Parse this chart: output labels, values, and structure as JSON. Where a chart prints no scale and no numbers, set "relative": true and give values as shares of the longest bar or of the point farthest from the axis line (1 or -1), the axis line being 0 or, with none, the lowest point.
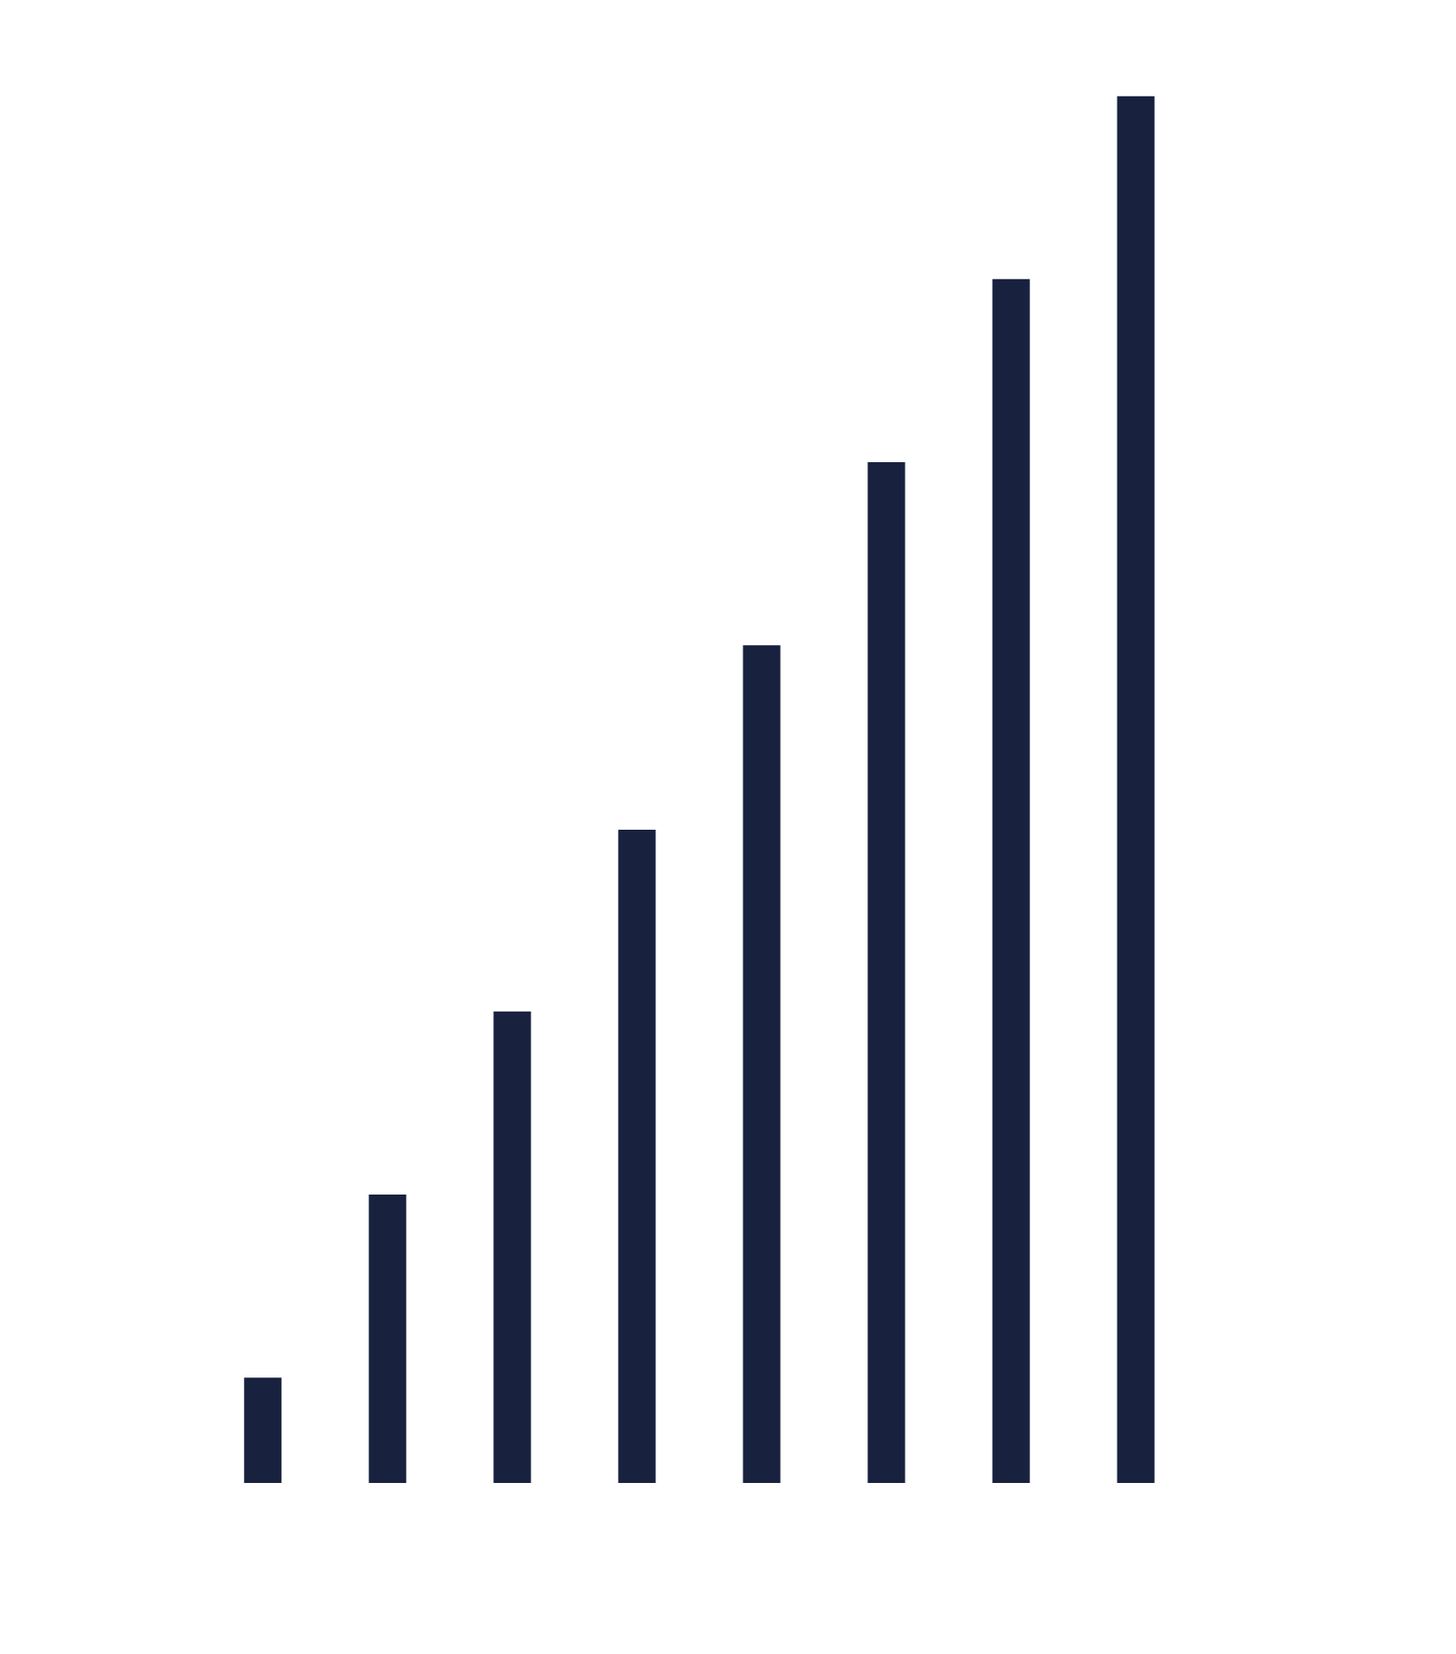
{
  "chart_data": {
    "type": "bar",
    "relative": true,
    "categories": [
      null,
      null,
      null,
      null,
      null,
      null,
      null,
      null
    ],
    "values": [
      0.076,
      0.208,
      0.34,
      0.471,
      0.604,
      0.736,
      0.868,
      1.0
    ],
    "color": "#18223f",
    "grid": false,
    "legend": false,
    "tick_labels": false
  }
}
